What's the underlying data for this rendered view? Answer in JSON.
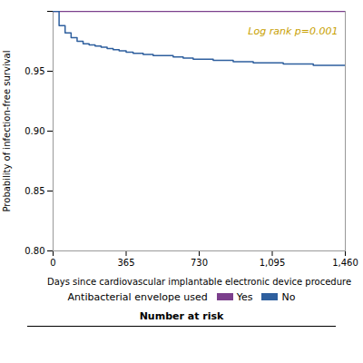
{
  "chart_data": {
    "type": "step",
    "xlabel": "Days since cardiovascular implantable electronic device procedure",
    "ylabel": "Probability of infection-free survival",
    "xlim": [
      0,
      1460
    ],
    "ylim": [
      0.8,
      1.0
    ],
    "xticks": [
      0,
      365,
      730,
      {
        "value": 1095,
        "label": "1,095"
      },
      {
        "value": 1460,
        "label": "1,460"
      }
    ],
    "yticks": [
      {
        "value": 0.8,
        "label": "0.80"
      },
      {
        "value": 0.85,
        "label": "0.85"
      },
      {
        "value": 0.9,
        "label": "0.90"
      },
      {
        "value": 0.95,
        "label": "0.95"
      },
      {
        "value": 1.0,
        "label": null
      }
    ],
    "legend": "bottom",
    "legend_title": "Antibacterial envelope used",
    "series": [
      {
        "name": "Yes",
        "color": "#7b3f8c",
        "x": [
          0,
          30,
          60,
          90,
          120,
          150,
          180,
          210,
          240,
          270,
          300,
          330,
          365,
          400,
          450,
          500,
          550,
          600,
          700,
          800,
          900,
          1000,
          1095,
          1200,
          1300,
          1460
        ],
        "values": [
          1.0,
          1.0,
          1.0,
          1.0,
          1.0,
          1.0,
          1.0,
          1.0,
          1.0,
          1.0,
          1.0,
          1.0,
          1.0,
          1.0,
          1.0,
          1.0,
          1.0,
          1.0,
          1.0,
          1.0,
          1.0,
          1.0,
          1.0,
          1.0,
          1.0,
          1.0
        ]
      },
      {
        "name": "No",
        "color": "#2e5f9e",
        "x": [
          0,
          30,
          60,
          90,
          120,
          150,
          180,
          210,
          240,
          270,
          300,
          330,
          365,
          400,
          450,
          500,
          550,
          600,
          650,
          700,
          730,
          800,
          900,
          1000,
          1095,
          1150,
          1200,
          1300,
          1400,
          1460
        ],
        "values": [
          1.0,
          0.988,
          0.982,
          0.978,
          0.975,
          0.973,
          0.972,
          0.971,
          0.97,
          0.969,
          0.968,
          0.967,
          0.966,
          0.965,
          0.964,
          0.963,
          0.963,
          0.962,
          0.961,
          0.96,
          0.96,
          0.959,
          0.958,
          0.957,
          0.957,
          0.956,
          0.956,
          0.955,
          0.955,
          0.955
        ]
      }
    ],
    "annotations": [
      {
        "text": "Log rank p=0.001",
        "color": "#c8a000"
      },
      {
        "text": "Number at risk"
      }
    ]
  }
}
